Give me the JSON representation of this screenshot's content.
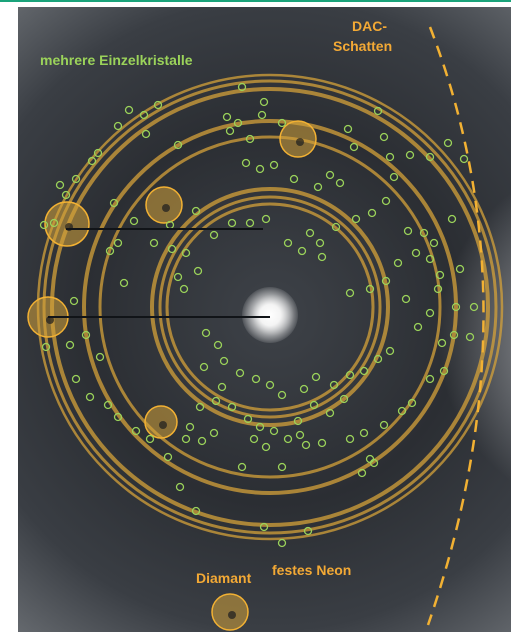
{
  "labels": {
    "single_crystals": "mehrere Einzelkristalle",
    "dac_shadow_line1": "DAC-",
    "dac_shadow_line2": "Schatten",
    "diamond": "Diamant",
    "solid_neon": "festes Neon"
  },
  "colors": {
    "accent_line": "#1aa37a",
    "ring": "#d4a23a",
    "dashed_boundary": "#f2b133",
    "green_markers": "#9bd35a",
    "label_orange": "#f3a935"
  }
}
